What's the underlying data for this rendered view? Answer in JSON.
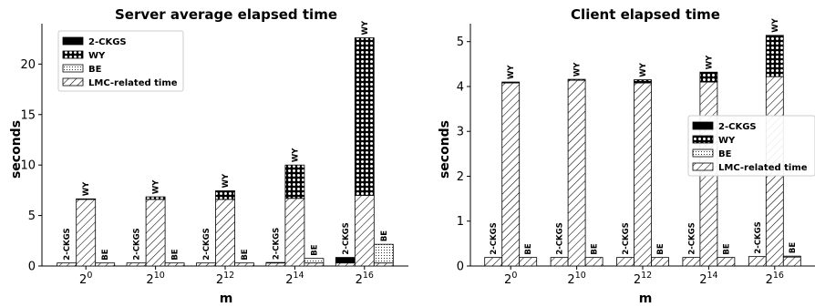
{
  "chart_data": [
    {
      "type": "bar",
      "stacked": true,
      "title": "Server average elapsed time",
      "xlabel": "m",
      "ylabel": "seconds",
      "categories": [
        "2^0",
        "2^10",
        "2^12",
        "2^14",
        "2^16"
      ],
      "category_base": "2",
      "category_exponents": [
        "0",
        "10",
        "12",
        "14",
        "16"
      ],
      "ylim": [
        0,
        24
      ],
      "yticks": [
        0,
        5,
        10,
        15,
        20
      ],
      "bar_groups": [
        "2-CKGS",
        "WY",
        "BE"
      ],
      "series": [
        {
          "name": "2-CKGS",
          "pattern": "solid-black",
          "bar_group": "2-CKGS",
          "values": [
            0,
            0,
            0,
            0.05,
            0.55
          ]
        },
        {
          "name": "WY",
          "pattern": "dots",
          "bar_group": "WY",
          "values": [
            0.05,
            0.25,
            0.85,
            3.3,
            15.6
          ]
        },
        {
          "name": "BE",
          "pattern": "fine-dots",
          "bar_group": "BE",
          "values": [
            0,
            0,
            0,
            0.45,
            1.85
          ]
        },
        {
          "name": "LMC-related time",
          "pattern": "hatch",
          "values_2ckgs": [
            0.3,
            0.3,
            0.3,
            0.3,
            0.3
          ],
          "values_wy": [
            6.6,
            6.6,
            6.6,
            6.7,
            7.0
          ],
          "values_be": [
            0.3,
            0.3,
            0.3,
            0.3,
            0.3
          ]
        }
      ],
      "legend": {
        "placement": "top-left",
        "entries": [
          "2-CKGS",
          "WY",
          "BE",
          "LMC-related time"
        ]
      }
    },
    {
      "type": "bar",
      "stacked": true,
      "title": "Client elapsed time",
      "xlabel": "m",
      "ylabel": "seconds",
      "categories": [
        "2^0",
        "2^10",
        "2^12",
        "2^14",
        "2^16"
      ],
      "category_base": "2",
      "category_exponents": [
        "0",
        "10",
        "12",
        "14",
        "16"
      ],
      "ylim": [
        0,
        5.4
      ],
      "yticks": [
        0,
        1,
        2,
        3,
        4,
        5
      ],
      "bar_groups": [
        "2-CKGS",
        "WY",
        "BE"
      ],
      "series": [
        {
          "name": "2-CKGS",
          "pattern": "solid-black",
          "bar_group": "2-CKGS",
          "values": [
            0,
            0,
            0,
            0,
            0
          ]
        },
        {
          "name": "WY",
          "pattern": "dots",
          "bar_group": "WY",
          "values": [
            0.02,
            0.02,
            0.07,
            0.22,
            0.92
          ]
        },
        {
          "name": "BE",
          "pattern": "fine-dots",
          "bar_group": "BE",
          "values": [
            0,
            0,
            0,
            0,
            0.02
          ]
        },
        {
          "name": "LMC-related time",
          "pattern": "hatch",
          "values_2ckgs": [
            0.19,
            0.19,
            0.19,
            0.19,
            0.21
          ],
          "values_wy": [
            4.08,
            4.14,
            4.08,
            4.1,
            4.22
          ],
          "values_be": [
            0.19,
            0.19,
            0.19,
            0.19,
            0.2
          ]
        }
      ],
      "legend": {
        "placement": "right",
        "entries": [
          "2-CKGS",
          "WY",
          "BE",
          "LMC-related time"
        ]
      }
    }
  ]
}
